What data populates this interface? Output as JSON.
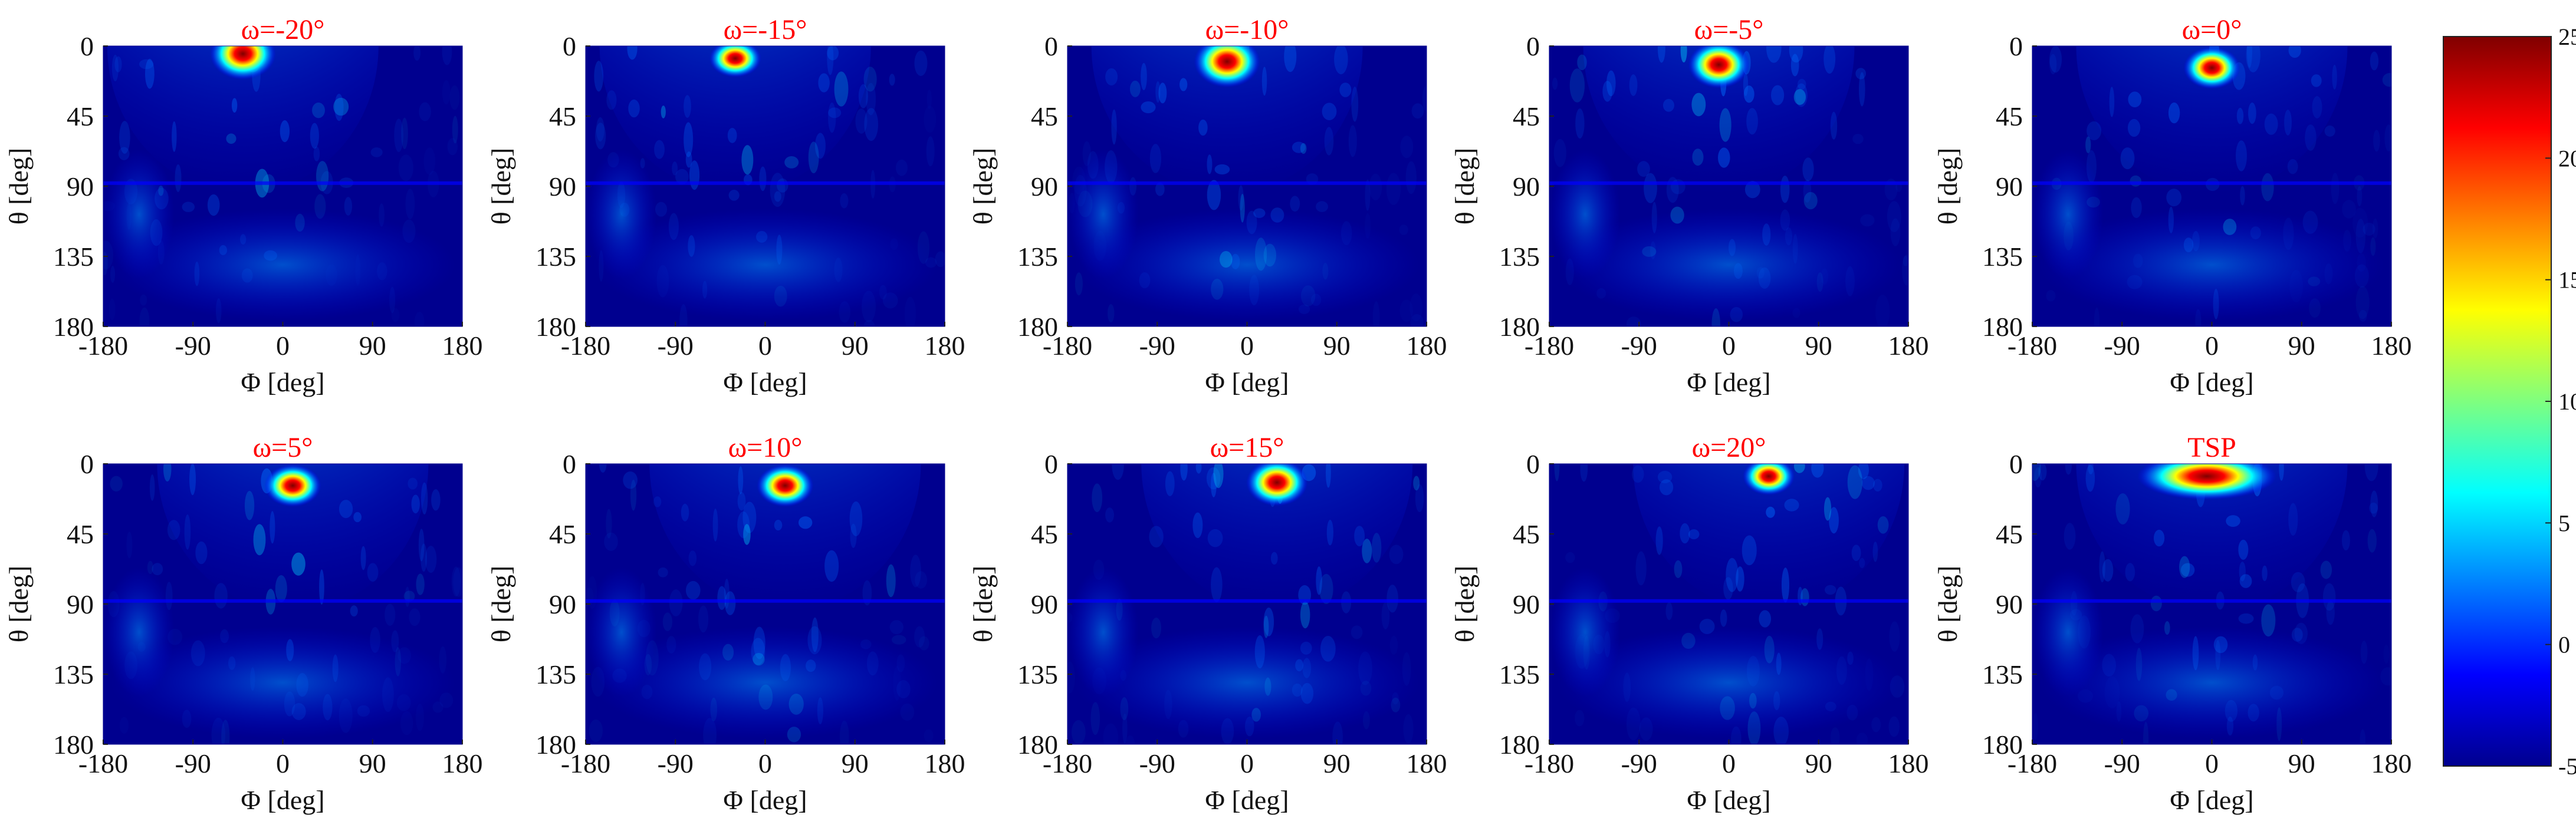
{
  "chart_data": {
    "type": "heatmap",
    "colormap": "jet",
    "panels": [
      {
        "title": "ω=-20°",
        "peak": {
          "phi": -40,
          "theta": 5
        },
        "peak_value": 25
      },
      {
        "title": "ω=-15°",
        "peak": {
          "phi": -30,
          "theta": 8
        },
        "peak_value": 22
      },
      {
        "title": "ω=-10°",
        "peak": {
          "phi": -20,
          "theta": 10
        },
        "peak_value": 25
      },
      {
        "title": "ω=-5°",
        "peak": {
          "phi": -10,
          "theta": 12
        },
        "peak_value": 24
      },
      {
        "title": "ω=0°",
        "peak": {
          "phi": 0,
          "theta": 14
        },
        "peak_value": 23
      },
      {
        "title": "ω=5°",
        "peak": {
          "phi": 10,
          "theta": 14
        },
        "peak_value": 23
      },
      {
        "title": "ω=10°",
        "peak": {
          "phi": 20,
          "theta": 14
        },
        "peak_value": 23
      },
      {
        "title": "ω=15°",
        "peak": {
          "phi": 30,
          "theta": 12
        },
        "peak_value": 24
      },
      {
        "title": "ω=20°",
        "peak": {
          "phi": 40,
          "theta": 8
        },
        "peak_value": 22
      },
      {
        "title": "TSP",
        "peak": {
          "phi": 0,
          "theta": 8
        },
        "peak_value": 25,
        "peak_spread_phi": [
          -60,
          50
        ]
      }
    ],
    "xlabel": "Φ [deg]",
    "ylabel": "θ [deg]",
    "xlim": [
      -180,
      180
    ],
    "ylim": [
      180,
      0
    ],
    "xticks": [
      "-180",
      "-90",
      "0",
      "90",
      "180"
    ],
    "yticks": [
      "0",
      "45",
      "90",
      "135",
      "180"
    ],
    "colorbar": {
      "range": [
        -5,
        25
      ],
      "ticks": [
        "-5",
        "0",
        "5",
        "10",
        "15",
        "20",
        "25"
      ],
      "orientation": "vertical",
      "placement": "right"
    },
    "grid": false
  }
}
